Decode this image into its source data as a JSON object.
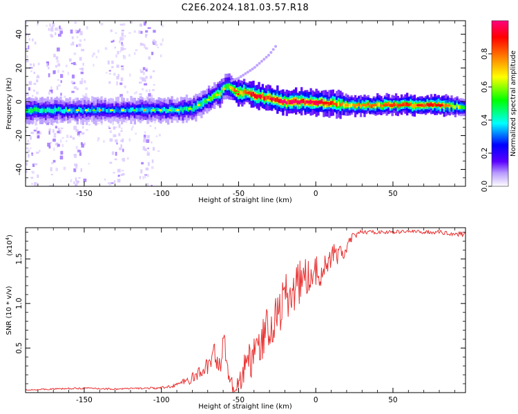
{
  "chart_data": [
    {
      "type": "heatmap",
      "title": "C2E6.2024.181.03.57.R18",
      "xlabel": "Height of straight line (km)",
      "ylabel": "Frequency (Hz)",
      "xlim": [
        -188,
        97
      ],
      "ylim": [
        -50,
        48
      ],
      "xticks": [
        -150,
        -100,
        -50,
        0,
        50
      ],
      "yticks": [
        -40,
        -20,
        0,
        20,
        40
      ],
      "grid": false,
      "colorbar": {
        "label": "Normalized spectral amplitude",
        "range": [
          0.0,
          1.0
        ],
        "ticks": [
          0.0,
          0.2,
          0.4,
          0.6,
          0.8
        ],
        "colors": [
          "#ffffff",
          "#6600ff",
          "#0000ff",
          "#00ffff",
          "#00ff00",
          "#ffff00",
          "#ff8000",
          "#ff0000",
          "#ff0080"
        ]
      },
      "ridge": {
        "description_points_x": [
          -188,
          -150,
          -120,
          -100,
          -90,
          -80,
          -70,
          -62,
          -57,
          -50,
          -45,
          -40,
          -30,
          -20,
          0,
          20,
          50,
          80,
          97
        ],
        "description_points_y": [
          -5,
          -5,
          -5,
          -5,
          -5,
          -4,
          1,
          5,
          10,
          5,
          6,
          4,
          2,
          0,
          0,
          -2,
          -2,
          -2,
          -3
        ],
        "amplitude": [
          0.45,
          0.35,
          0.35,
          0.4,
          0.4,
          0.45,
          0.5,
          0.6,
          0.55,
          0.85,
          0.75,
          0.9,
          0.9,
          0.95,
          0.9,
          0.7,
          0.8,
          0.85,
          0.5
        ]
      },
      "branch": {
        "x": [
          -62,
          -50,
          -40,
          -30,
          -25
        ],
        "y": [
          10,
          14,
          20,
          28,
          34
        ]
      },
      "scatter_bands_x": [
        -185,
        -170,
        -155,
        -130,
        -110
      ]
    },
    {
      "type": "line",
      "xlabel": "Height of straight line (km)",
      "ylabel": "SNR (10 * v/v)",
      "y_multiplier": "(x10",
      "y_multiplier_exp": "4",
      "y_multiplier_close": ")",
      "xlim": [
        -188,
        97
      ],
      "ylim": [
        0,
        18500
      ],
      "xticks": [
        -150,
        -100,
        -50,
        0,
        50
      ],
      "yticks": [
        5000,
        10000,
        15000
      ],
      "ytick_labels": [
        "0.5",
        "1.0",
        "1.5"
      ],
      "grid": false,
      "series": [
        {
          "color": "#e83030",
          "x": [
            -188,
            -170,
            -150,
            -130,
            -110,
            -100,
            -95,
            -90,
            -85,
            -80,
            -75,
            -70,
            -68,
            -66,
            -64,
            -62,
            -60,
            -58,
            -56,
            -54,
            -52,
            -50,
            -48,
            -46,
            -44,
            -42,
            -40,
            -38,
            -36,
            -34,
            -32,
            -30,
            -28,
            -26,
            -24,
            -22,
            -20,
            -18,
            -16,
            -14,
            -12,
            -10,
            -8,
            -6,
            -4,
            -2,
            0,
            2,
            4,
            6,
            8,
            10,
            12,
            14,
            16,
            18,
            20,
            22,
            24,
            26,
            28,
            30,
            34,
            40,
            50,
            60,
            70,
            80,
            90,
            97
          ],
          "values": [
            300,
            400,
            500,
            400,
            500,
            500,
            700,
            900,
            1200,
            1600,
            2200,
            3000,
            3500,
            4500,
            3800,
            3000,
            5500,
            4200,
            2000,
            700,
            700,
            1000,
            1500,
            3000,
            4500,
            2500,
            5500,
            6000,
            3500,
            6500,
            7000,
            8000,
            6500,
            9000,
            8500,
            10000,
            11000,
            10500,
            11500,
            11000,
            12000,
            12500,
            13500,
            12500,
            13500,
            12000,
            13500,
            13000,
            14000,
            15000,
            14500,
            15000,
            16000,
            15000,
            16000,
            15500,
            16000,
            17000,
            17500,
            17500,
            18000,
            18000,
            18000,
            18000,
            18000,
            18100,
            18000,
            18000,
            17800,
            17800
          ],
          "noise": [
            50,
            80,
            100,
            100,
            100,
            150,
            200,
            300,
            400,
            600,
            800,
            1000,
            1200,
            1300,
            1300,
            1400,
            1500,
            1500,
            1200,
            800,
            800,
            1000,
            1200,
            1500,
            1800,
            2000,
            2200,
            2200,
            2200,
            2400,
            2400,
            2500,
            2500,
            2600,
            2600,
            2600,
            2600,
            2600,
            2500,
            2500,
            2400,
            2400,
            2200,
            2200,
            2000,
            2000,
            2000,
            1800,
            1600,
            1500,
            1400,
            1200,
            1000,
            900,
            800,
            700,
            600,
            500,
            400,
            300,
            250,
            250,
            200,
            200,
            200,
            200,
            200,
            200,
            250,
            300
          ]
        }
      ]
    }
  ]
}
